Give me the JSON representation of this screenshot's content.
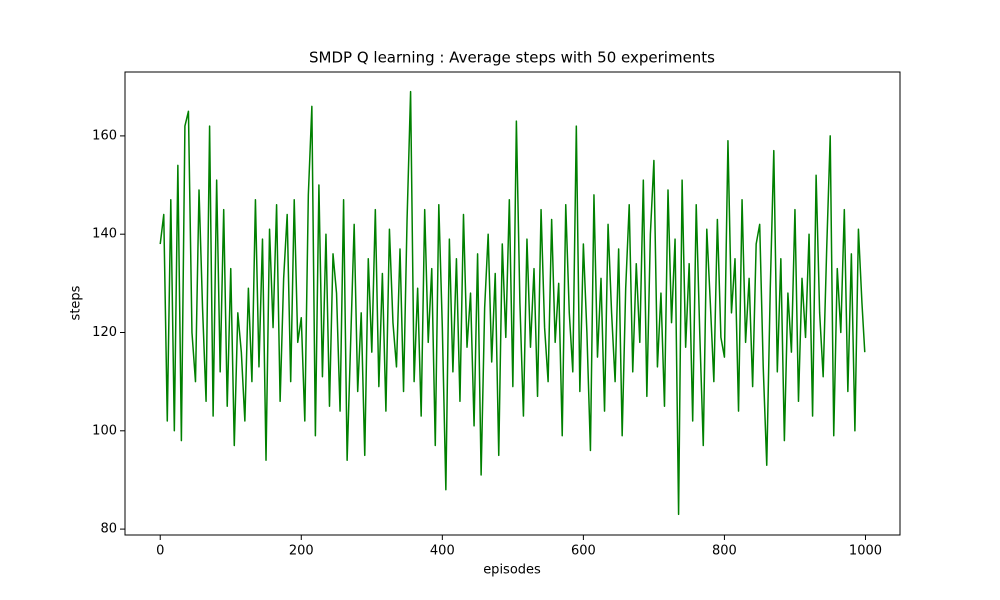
{
  "chart_data": {
    "type": "line",
    "title": "SMDP Q learning : Average steps with 50 experiments",
    "x_label": "episodes",
    "y_label": "steps",
    "x": [
      0,
      5,
      10,
      15,
      20,
      25,
      30,
      35,
      40,
      45,
      50,
      55,
      60,
      65,
      70,
      75,
      80,
      85,
      90,
      95,
      100,
      105,
      110,
      115,
      120,
      125,
      130,
      135,
      140,
      145,
      150,
      155,
      160,
      165,
      170,
      175,
      180,
      185,
      190,
      195,
      200,
      205,
      210,
      215,
      220,
      225,
      230,
      235,
      240,
      245,
      250,
      255,
      260,
      265,
      270,
      275,
      280,
      285,
      290,
      295,
      300,
      305,
      310,
      315,
      320,
      325,
      330,
      335,
      340,
      345,
      350,
      355,
      360,
      365,
      370,
      375,
      380,
      385,
      390,
      395,
      400,
      405,
      410,
      415,
      420,
      425,
      430,
      435,
      440,
      445,
      450,
      455,
      460,
      465,
      470,
      475,
      480,
      485,
      490,
      495,
      500,
      505,
      510,
      515,
      520,
      525,
      530,
      535,
      540,
      545,
      550,
      555,
      560,
      565,
      570,
      575,
      580,
      585,
      590,
      595,
      600,
      605,
      610,
      615,
      620,
      625,
      630,
      635,
      640,
      645,
      650,
      655,
      660,
      665,
      670,
      675,
      680,
      685,
      690,
      695,
      700,
      705,
      710,
      715,
      720,
      725,
      730,
      735,
      740,
      745,
      750,
      755,
      760,
      765,
      770,
      775,
      780,
      785,
      790,
      795,
      800,
      805,
      810,
      815,
      820,
      825,
      830,
      835,
      840,
      845,
      850,
      855,
      860,
      865,
      870,
      875,
      880,
      885,
      890,
      895,
      900,
      905,
      910,
      915,
      920,
      925,
      930,
      935,
      940,
      945,
      950,
      955,
      960,
      965,
      970,
      975,
      980,
      985,
      990,
      995,
      999
    ],
    "series": [
      {
        "name": "steps",
        "color": "#008000",
        "values": [
          138,
          144,
          102,
          147,
          100,
          154,
          98,
          162,
          165,
          120,
          110,
          149,
          125,
          106,
          162,
          103,
          151,
          112,
          145,
          105,
          133,
          97,
          124,
          116,
          102,
          129,
          110,
          147,
          113,
          139,
          94,
          141,
          121,
          146,
          106,
          131,
          144,
          110,
          147,
          118,
          123,
          102,
          148,
          166,
          99,
          150,
          111,
          140,
          105,
          136,
          128,
          104,
          147,
          94,
          118,
          142,
          108,
          124,
          95,
          135,
          116,
          145,
          109,
          132,
          104,
          141,
          122,
          113,
          137,
          108,
          143,
          169,
          110,
          129,
          103,
          145,
          118,
          133,
          97,
          146,
          121,
          88,
          139,
          112,
          135,
          106,
          144,
          117,
          128,
          101,
          136,
          91,
          125,
          140,
          114,
          132,
          95,
          138,
          119,
          147,
          109,
          163,
          126,
          103,
          139,
          117,
          133,
          107,
          145,
          121,
          110,
          143,
          118,
          130,
          99,
          146,
          124,
          112,
          162,
          108,
          138,
          120,
          96,
          148,
          115,
          131,
          104,
          142,
          124,
          110,
          137,
          99,
          129,
          146,
          112,
          134,
          118,
          151,
          107,
          140,
          155,
          113,
          128,
          105,
          149,
          122,
          139,
          83,
          151,
          117,
          134,
          102,
          146,
          120,
          97,
          141,
          126,
          110,
          143,
          119,
          115,
          159,
          124,
          135,
          104,
          147,
          118,
          131,
          109,
          138,
          142,
          113,
          93,
          129,
          157,
          112,
          135,
          98,
          128,
          116,
          145,
          106,
          131,
          119,
          140,
          103,
          152,
          124,
          111,
          137,
          160,
          99,
          133,
          120,
          145,
          108,
          136,
          100,
          141,
          126,
          116
        ]
      }
    ],
    "xlim": [
      -49.95,
      1048.95
    ],
    "ylim": [
      78.8,
      173.0
    ],
    "xticks": [
      0,
      200,
      400,
      600,
      800,
      1000
    ],
    "yticks": [
      80,
      100,
      120,
      140,
      160
    ]
  }
}
